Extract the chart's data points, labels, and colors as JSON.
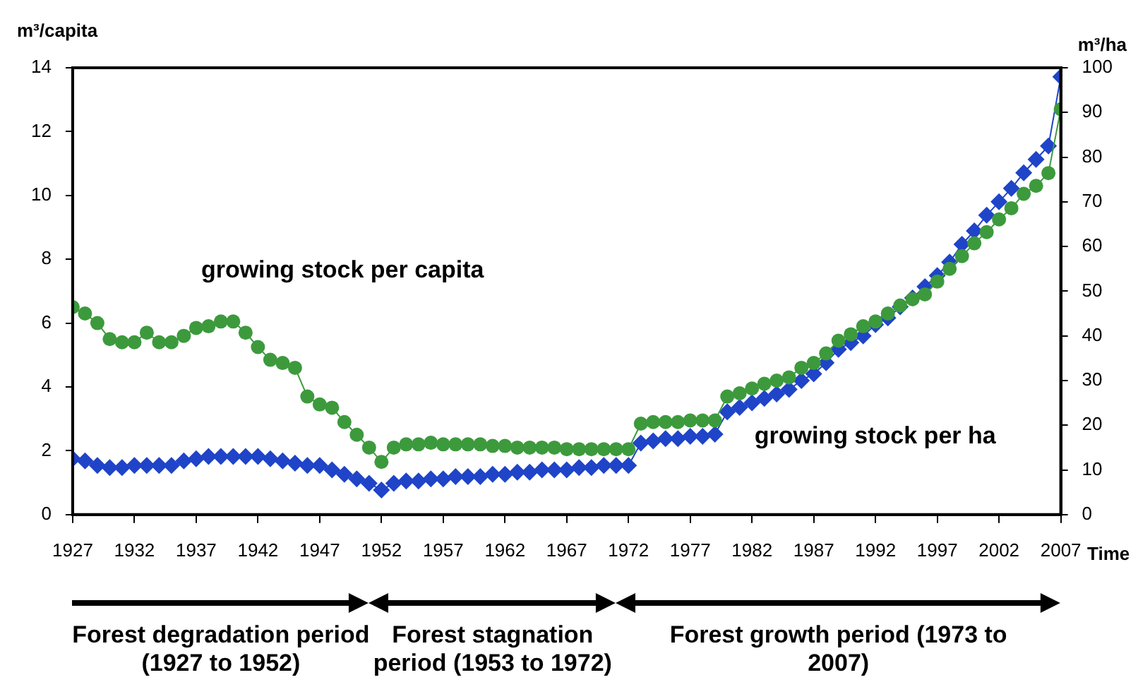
{
  "chart_data": {
    "type": "line",
    "xlabel": "Time",
    "ylabel": "m³/capita",
    "y2label": "m³/ha",
    "x": [
      1927,
      1928,
      1929,
      1930,
      1931,
      1932,
      1933,
      1934,
      1935,
      1936,
      1937,
      1938,
      1939,
      1940,
      1941,
      1942,
      1943,
      1944,
      1945,
      1946,
      1947,
      1948,
      1949,
      1950,
      1951,
      1952,
      1953,
      1954,
      1955,
      1956,
      1957,
      1958,
      1959,
      1960,
      1961,
      1962,
      1963,
      1964,
      1965,
      1966,
      1967,
      1968,
      1969,
      1970,
      1971,
      1972,
      1973,
      1974,
      1975,
      1976,
      1977,
      1978,
      1979,
      1980,
      1981,
      1982,
      1983,
      1984,
      1985,
      1986,
      1987,
      1988,
      1989,
      1990,
      1991,
      1992,
      1993,
      1994,
      1995,
      1996,
      1997,
      1998,
      1999,
      2000,
      2001,
      2002,
      2003,
      2004,
      2005,
      2006,
      2007
    ],
    "xlim": [
      1927,
      2007
    ],
    "xticks": [
      1927,
      1932,
      1937,
      1942,
      1947,
      1952,
      1957,
      1962,
      1967,
      1972,
      1977,
      1982,
      1987,
      1992,
      1997,
      2002,
      2007
    ],
    "ylim": [
      0,
      14
    ],
    "yticks": [
      0,
      2,
      4,
      6,
      8,
      10,
      12,
      14
    ],
    "y2lim": [
      0,
      100
    ],
    "y2ticks": [
      0,
      10,
      20,
      30,
      40,
      50,
      60,
      70,
      80,
      90,
      100
    ],
    "series": [
      {
        "name": "growing stock per capita",
        "color": "#3c9a3c",
        "marker": "circle",
        "values": [
          6.5,
          6.3,
          6.0,
          5.5,
          5.4,
          5.4,
          5.7,
          5.4,
          5.4,
          5.6,
          5.85,
          5.9,
          6.05,
          6.05,
          5.7,
          5.25,
          4.85,
          4.75,
          4.6,
          3.7,
          3.45,
          3.35,
          2.9,
          2.5,
          2.1,
          1.65,
          2.1,
          2.2,
          2.2,
          2.25,
          2.2,
          2.2,
          2.2,
          2.2,
          2.15,
          2.15,
          2.1,
          2.1,
          2.1,
          2.1,
          2.05,
          2.05,
          2.05,
          2.05,
          2.05,
          2.05,
          2.85,
          2.9,
          2.9,
          2.9,
          2.95,
          2.95,
          2.95,
          3.7,
          3.8,
          3.95,
          4.1,
          4.2,
          4.3,
          4.6,
          4.75,
          5.05,
          5.45,
          5.65,
          5.9,
          6.05,
          6.3,
          6.55,
          6.75,
          6.9,
          7.3,
          7.7,
          8.1,
          8.5,
          8.85,
          9.25,
          9.6,
          10.05,
          10.3,
          10.7,
          12.7
        ]
      },
      {
        "name": "growing stock per ha",
        "color": "#1f44c8",
        "marker": "diamond",
        "axis": "y2",
        "values": [
          12.5,
          12,
          11,
          10.5,
          10.5,
          11,
          11,
          11,
          11,
          12,
          12.5,
          13,
          13,
          13,
          13,
          13,
          12.5,
          12,
          11.5,
          11,
          11,
          10,
          9,
          8,
          7,
          5.5,
          7,
          7.5,
          7.5,
          8,
          8,
          8.5,
          8.5,
          8.5,
          9,
          9,
          9.5,
          9.5,
          10,
          10,
          10,
          10.5,
          10.5,
          11,
          11,
          11,
          16,
          16.5,
          17,
          17,
          17.5,
          17.5,
          18,
          23,
          24,
          25,
          26,
          27,
          28,
          30,
          31.5,
          34,
          37,
          38.5,
          40,
          42.5,
          44,
          46.5,
          48.5,
          51,
          53.5,
          56.5,
          60.5,
          63.5,
          67,
          70,
          73,
          76.5,
          79.5,
          82.5,
          98
        ]
      }
    ],
    "grid": false,
    "legend": false,
    "line_style": "solid",
    "annotations": [
      "Forest degradation period (1927 to 1952)",
      "Forest stagnation period (1953 to 1972)",
      "Forest growth period (1973 to 2007)"
    ]
  }
}
